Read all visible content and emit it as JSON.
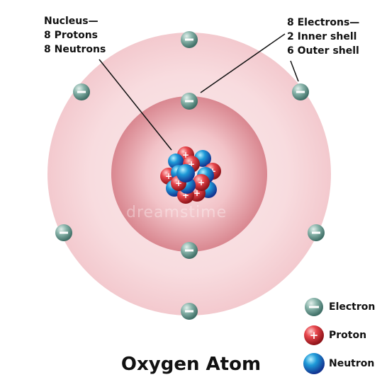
{
  "title": "Oxygen Atom",
  "nucleus_label": [
    "Nucleus—",
    "8 Protons",
    "8 Neutrons"
  ],
  "electron_label": [
    "8 Electrons—",
    "2 Inner shell",
    "6 Outer shell"
  ],
  "legend": {
    "electron": "Electron",
    "proton": "Proton",
    "neutron": "Neutron"
  },
  "watermark": "dreamstime",
  "counts": {
    "protons": 8,
    "neutrons": 8,
    "inner_shell_electrons": 2,
    "outer_shell_electrons": 6
  },
  "colors": {
    "outer_shell": "#f7d6da",
    "inner_shell": "#e89ea6",
    "electron": "#6fa096",
    "proton": "#d8323a",
    "neutron": "#1f5fd0"
  },
  "icons": {
    "electron": "minus-sign",
    "proton": "plus-sign"
  }
}
